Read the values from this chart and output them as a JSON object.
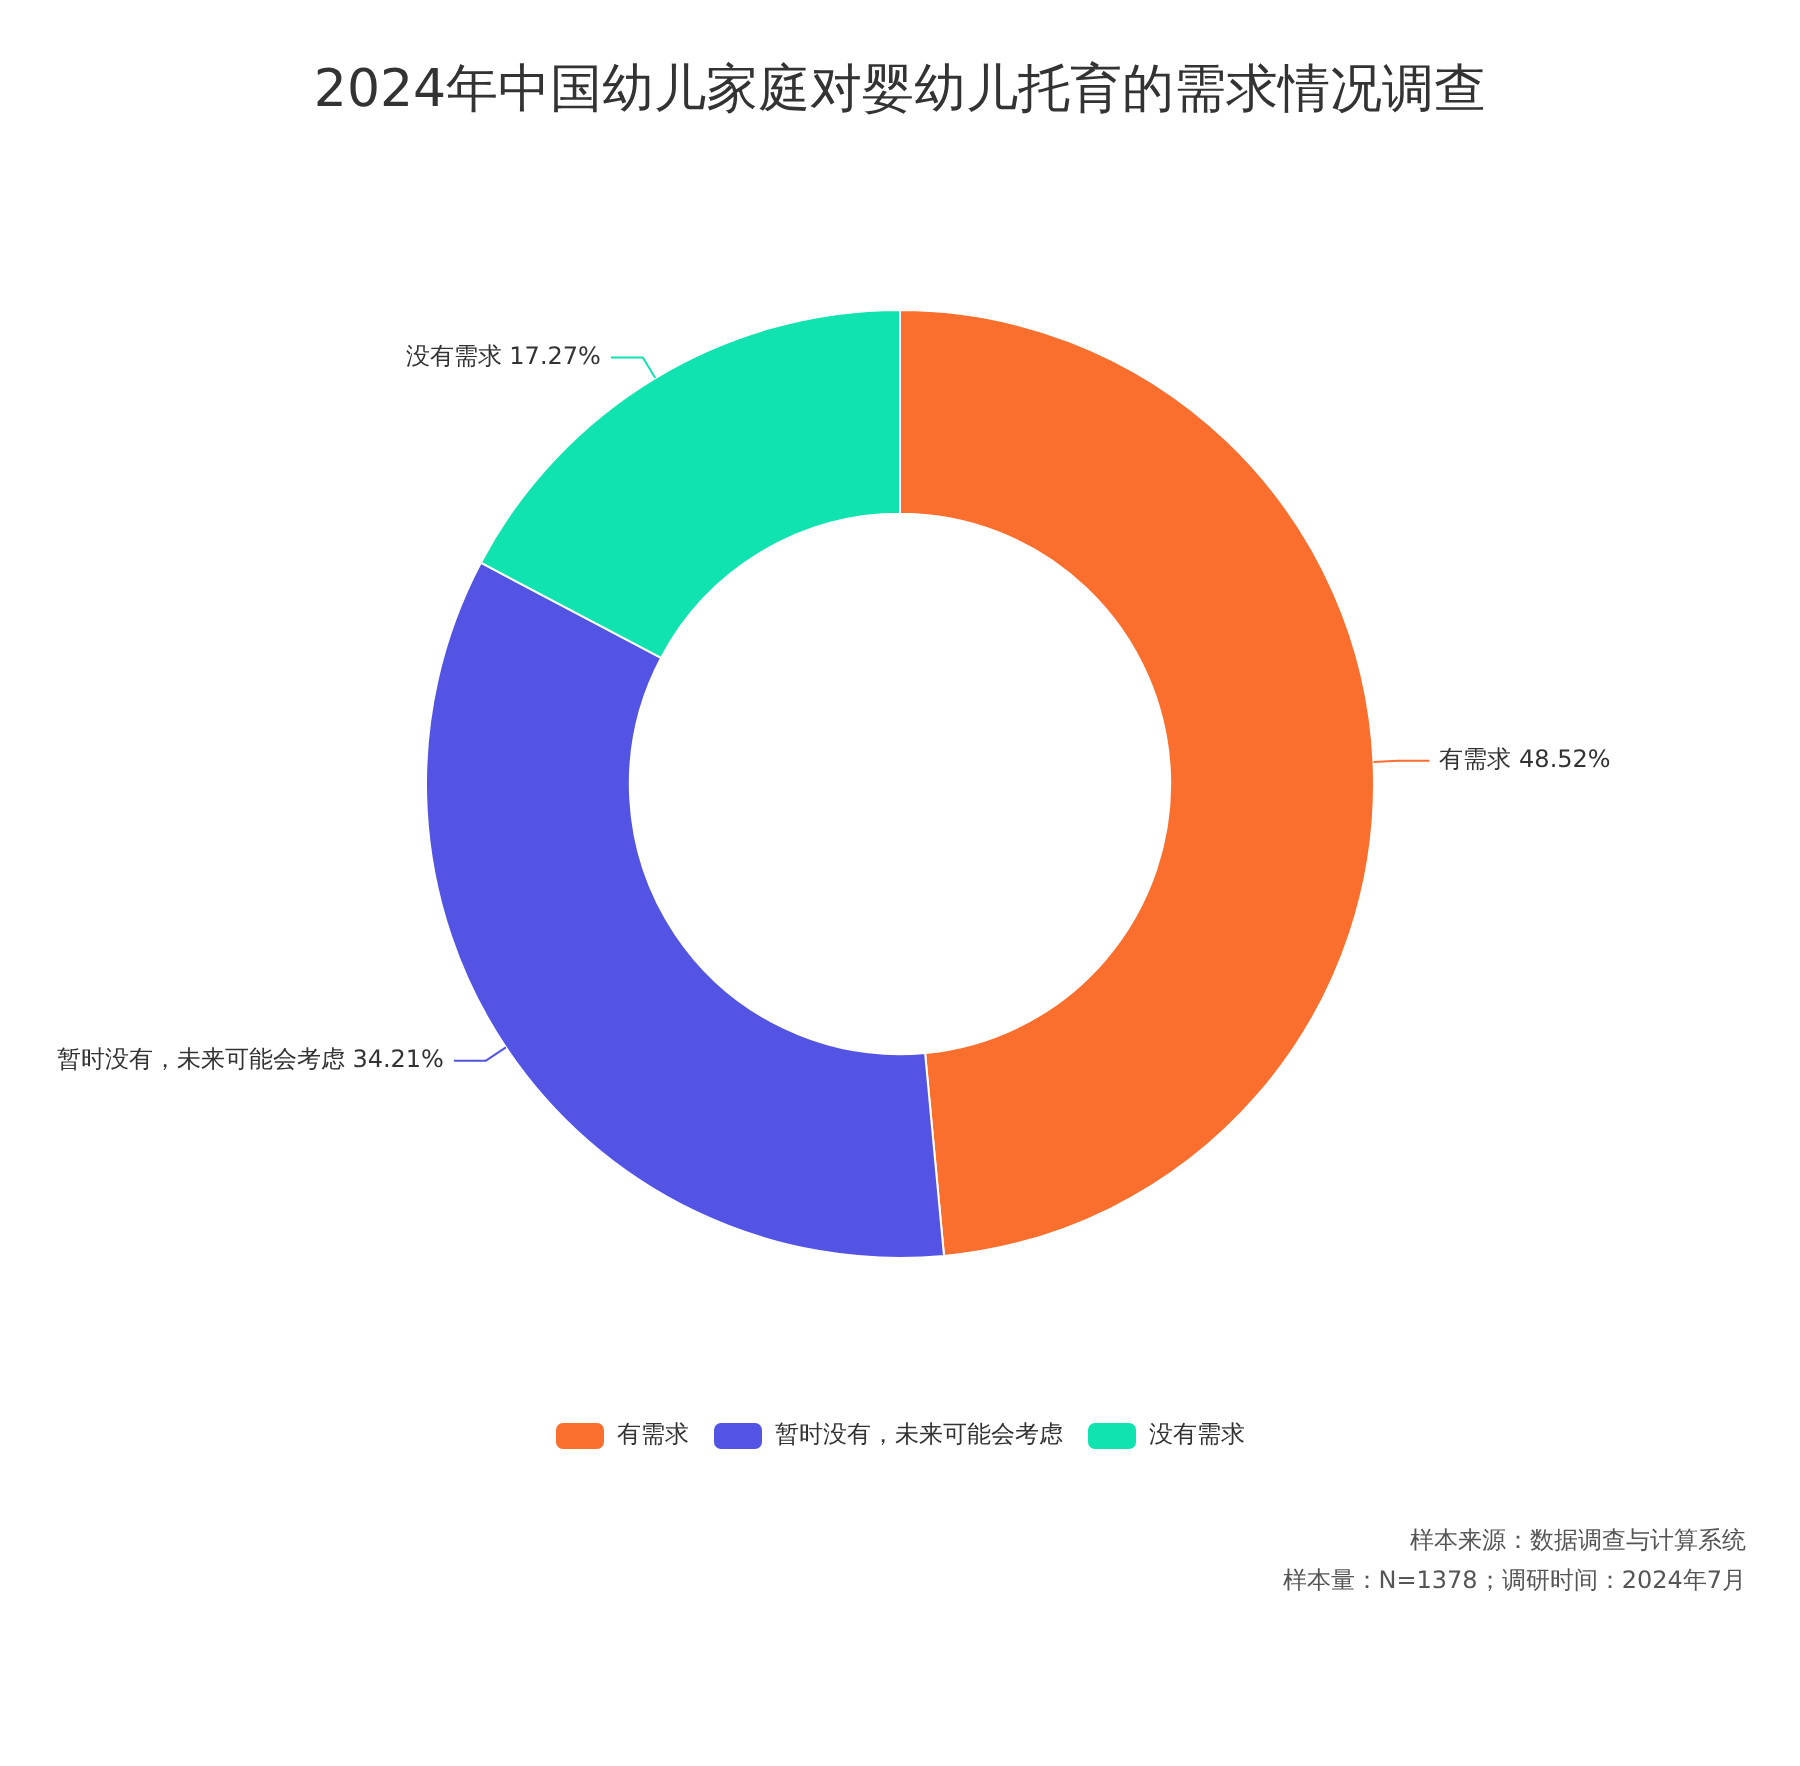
{
  "chart_data": {
    "type": "donut",
    "title": "2024年中国幼儿家庭对婴幼儿托育的需求情况调查",
    "categories": [
      "有需求",
      "暂时没有，未来可能会考虑",
      "没有需求"
    ],
    "values": [
      48.52,
      34.21,
      17.27
    ],
    "colors": [
      "#fa6e2e",
      "#5353e4",
      "#10e3b0"
    ],
    "value_labels": [
      "48.52%",
      "34.21%",
      "17.27%"
    ],
    "legend": "bottom",
    "annotations": [
      "样本来源：数据调查与计算系统",
      "样本量：N=1378；调研时间：2024年7月"
    ]
  }
}
